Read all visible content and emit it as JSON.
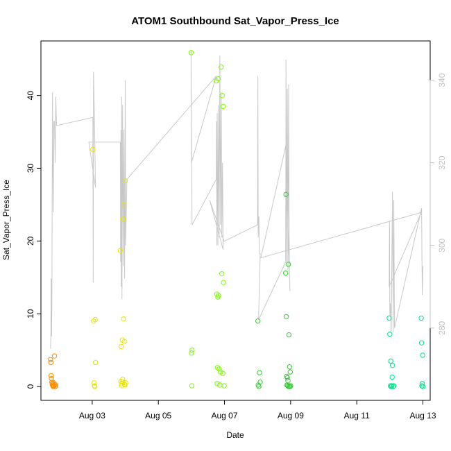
{
  "chart_data": {
    "type": "scatter",
    "title": "ATOM1 Southbound Sat_Vapor_Press_Ice",
    "xlabel": "Date",
    "ylabel": "Sat_Vapor_Press_Ice",
    "y2label": "",
    "xlim": [
      1.45,
      13.22
    ],
    "ylim": [
      -1.9,
      47.5
    ],
    "y2lim": [
      262.5,
      349.5
    ],
    "x_ticks": [
      {
        "value": 3,
        "label": "Aug 03"
      },
      {
        "value": 5,
        "label": "Aug 05"
      },
      {
        "value": 7,
        "label": "Aug 07"
      },
      {
        "value": 9,
        "label": "Aug 09"
      },
      {
        "value": 11,
        "label": "Aug 11"
      },
      {
        "value": 13,
        "label": "Aug 13"
      }
    ],
    "y_ticks": [
      0,
      10,
      20,
      30,
      40
    ],
    "y2_ticks": [
      280,
      300,
      320,
      340
    ],
    "grid": false,
    "series": [
      {
        "marker": "open-circle",
        "color": "#ff8c00",
        "points": [
          [
            1.74,
            3.7
          ],
          [
            1.75,
            3.3
          ],
          [
            1.76,
            1.5
          ],
          [
            1.77,
            1.1
          ],
          [
            1.78,
            0.6
          ],
          [
            1.79,
            0.4
          ],
          [
            1.8,
            0.2
          ],
          [
            1.81,
            0.1
          ],
          [
            1.82,
            0.0
          ],
          [
            1.83,
            0.5
          ],
          [
            1.84,
            0.1
          ],
          [
            1.86,
            4.2
          ],
          [
            1.87,
            0.3
          ],
          [
            1.88,
            0.0
          ],
          [
            1.89,
            0.2
          ]
        ]
      },
      {
        "marker": "open-circle",
        "color": "#e6e600",
        "points": [
          [
            3.02,
            32.6
          ],
          [
            3.04,
            9.0
          ],
          [
            3.06,
            0.5
          ],
          [
            3.07,
            0.1
          ],
          [
            3.08,
            0.0
          ],
          [
            3.09,
            9.2
          ],
          [
            3.1,
            3.3
          ],
          [
            3.85,
            18.7
          ],
          [
            3.87,
            0.7
          ],
          [
            3.88,
            5.5
          ],
          [
            3.89,
            0.4
          ],
          [
            3.9,
            0.1
          ],
          [
            3.91,
            6.4
          ],
          [
            3.92,
            1.0
          ],
          [
            3.93,
            0.6
          ],
          [
            3.94,
            23.0
          ],
          [
            3.95,
            9.3
          ],
          [
            3.96,
            25.0
          ],
          [
            3.97,
            6.2
          ],
          [
            3.98,
            0.3
          ],
          [
            3.99,
            0.2
          ],
          [
            4.0,
            28.3
          ],
          [
            4.01,
            0.5
          ]
        ]
      },
      {
        "marker": "open-circle",
        "color": "#7cfc00",
        "points": [
          [
            5.99,
            45.9
          ],
          [
            6.0,
            4.6
          ],
          [
            6.01,
            0.1
          ],
          [
            6.02,
            5.0
          ],
          [
            6.75,
            42.0
          ],
          [
            6.77,
            12.7
          ],
          [
            6.78,
            0.4
          ],
          [
            6.79,
            2.6
          ],
          [
            6.8,
            12.3
          ],
          [
            6.81,
            42.3
          ],
          [
            6.82,
            12.5
          ],
          [
            6.84,
            2.4
          ],
          [
            6.86,
            0.2
          ],
          [
            6.88,
            2.0
          ],
          [
            6.9,
            43.9
          ],
          [
            6.92,
            15.5
          ],
          [
            6.93,
            40.0
          ],
          [
            6.95,
            1.8
          ],
          [
            6.96,
            38.5
          ],
          [
            6.97,
            14.3
          ],
          [
            6.99,
            0.1
          ]
        ]
      },
      {
        "marker": "open-circle",
        "color": "#32cd32",
        "points": [
          [
            8.01,
            9.0
          ],
          [
            8.02,
            0.2
          ],
          [
            8.04,
            0.0
          ],
          [
            8.06,
            1.9
          ],
          [
            8.08,
            0.6
          ],
          [
            8.85,
            15.6
          ],
          [
            8.86,
            26.4
          ],
          [
            8.87,
            9.6
          ],
          [
            8.88,
            1.4
          ],
          [
            8.89,
            0.2
          ],
          [
            8.9,
            1.2
          ],
          [
            8.91,
            0.1
          ],
          [
            8.92,
            0.8
          ],
          [
            8.93,
            16.8
          ],
          [
            8.94,
            0.0
          ],
          [
            8.95,
            7.1
          ],
          [
            8.96,
            0.1
          ],
          [
            8.97,
            2.7
          ],
          [
            8.98,
            0.0
          ],
          [
            8.99,
            2.0
          ],
          [
            9.0,
            0.1
          ]
        ]
      },
      {
        "marker": "open-circle",
        "color": "#00e08a",
        "points": [
          [
            11.98,
            9.4
          ],
          [
            12.0,
            7.2
          ],
          [
            12.02,
            0.1
          ],
          [
            12.03,
            3.5
          ],
          [
            12.04,
            0.0
          ],
          [
            12.06,
            0.1
          ],
          [
            12.07,
            1.3
          ],
          [
            12.08,
            2.9
          ],
          [
            12.1,
            0.0
          ],
          [
            12.12,
            0.1
          ],
          [
            12.95,
            9.4
          ],
          [
            12.96,
            6.0
          ],
          [
            12.97,
            0.1
          ],
          [
            12.98,
            0.4
          ],
          [
            12.99,
            4.3
          ],
          [
            13.0,
            0.0
          ]
        ]
      }
    ],
    "line_series": {
      "axis": "right",
      "color": "#c8c8c8",
      "points": [
        [
          1.74,
          275.0
        ],
        [
          1.75,
          278.0
        ],
        [
          1.76,
          292.0
        ],
        [
          1.77,
          278.0
        ],
        [
          1.78,
          285.0
        ],
        [
          1.8,
          337.0
        ],
        [
          1.82,
          308.0
        ],
        [
          1.84,
          330.0
        ],
        [
          1.86,
          330.0
        ],
        [
          1.88,
          320.0
        ],
        [
          1.9,
          336.0
        ],
        [
          1.92,
          329.0
        ],
        [
          3.02,
          331.0
        ],
        [
          3.03,
          291.0
        ],
        [
          3.04,
          342.0
        ],
        [
          3.06,
          334.0
        ],
        [
          3.1,
          314.0
        ],
        [
          2.9,
          325.0
        ],
        [
          3.85,
          325.0
        ],
        [
          3.86,
          296.0
        ],
        [
          3.87,
          328.0
        ],
        [
          3.88,
          290.0
        ],
        [
          3.89,
          336.0
        ],
        [
          3.9,
          287.0
        ],
        [
          3.92,
          334.0
        ],
        [
          3.94,
          295.0
        ],
        [
          3.96,
          328.0
        ],
        [
          3.98,
          292.0
        ],
        [
          4.0,
          340.0
        ],
        [
          4.01,
          300.0
        ],
        [
          4.05,
          316.0
        ],
        [
          6.75,
          341.0
        ],
        [
          6.0,
          320.0
        ],
        [
          5.99,
          347.0
        ],
        [
          6.0,
          328.0
        ],
        [
          6.02,
          305.0
        ],
        [
          6.75,
          316.0
        ],
        [
          6.76,
          330.0
        ],
        [
          6.77,
          300.0
        ],
        [
          6.78,
          332.0
        ],
        [
          6.8,
          300.0
        ],
        [
          6.82,
          334.0
        ],
        [
          6.84,
          302.0
        ],
        [
          6.86,
          346.0
        ],
        [
          6.88,
          305.0
        ],
        [
          6.9,
          337.0
        ],
        [
          6.92,
          302.0
        ],
        [
          6.94,
          320.0
        ],
        [
          6.96,
          299.0
        ],
        [
          6.55,
          311.0
        ],
        [
          6.99,
          301.0
        ],
        [
          8.0,
          305.0
        ],
        [
          8.01,
          341.0
        ],
        [
          8.02,
          302.0
        ],
        [
          8.04,
          307.0
        ],
        [
          8.06,
          298.0
        ],
        [
          8.08,
          298.0
        ],
        [
          8.03,
          282.0
        ],
        [
          8.85,
          296.0
        ],
        [
          8.86,
          345.0
        ],
        [
          8.88,
          296.0
        ],
        [
          8.9,
          338.0
        ],
        [
          8.92,
          294.0
        ],
        [
          8.94,
          339.0
        ],
        [
          8.96,
          295.0
        ],
        [
          8.98,
          289.0
        ],
        [
          8.85,
          324.0
        ],
        [
          8.1,
          297.0
        ],
        [
          12.95,
          308.0
        ],
        [
          11.98,
          290.0
        ],
        [
          11.99,
          306.0
        ],
        [
          12.0,
          283.0
        ],
        [
          12.02,
          286.0
        ],
        [
          12.04,
          279.0
        ],
        [
          12.08,
          313.0
        ],
        [
          12.1,
          279.0
        ],
        [
          12.12,
          311.0
        ],
        [
          12.14,
          280.0
        ],
        [
          12.96,
          309.0
        ],
        [
          12.98,
          288.0
        ],
        [
          13.0,
          295.0
        ]
      ]
    }
  }
}
